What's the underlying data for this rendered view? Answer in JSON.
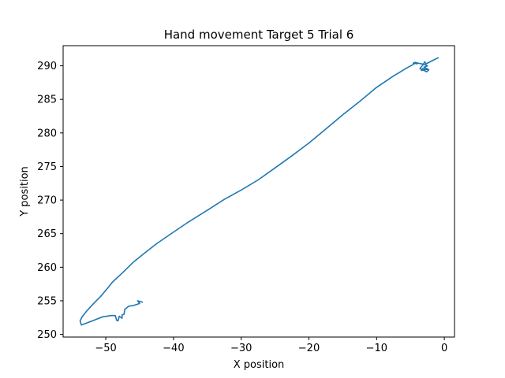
{
  "chart_data": {
    "type": "line",
    "title": "Hand movement Target 5 Trial 6",
    "xlabel": "X position",
    "ylabel": "Y position",
    "xlim": [
      -56.3,
      1.5
    ],
    "ylim": [
      249.6,
      293.0
    ],
    "x_ticks": [
      -50,
      -40,
      -30,
      -20,
      -10,
      0
    ],
    "x_tick_labels": [
      "−50",
      "−40",
      "−30",
      "−20",
      "−10",
      "0"
    ],
    "y_ticks": [
      250,
      255,
      260,
      265,
      270,
      275,
      280,
      285,
      290
    ],
    "y_tick_labels": [
      "250",
      "255",
      "260",
      "265",
      "270",
      "275",
      "280",
      "285",
      "290"
    ],
    "grid": false,
    "line_color": "#1f77b4",
    "series": [
      {
        "x": [
          -44.6,
          -45.3,
          -45.0,
          -45.9,
          -46.6,
          -47.2,
          -47.3,
          -47.6,
          -47.6,
          -48.0,
          -48.2,
          -48.4,
          -48.6,
          -49.2,
          -50.5,
          -52.0,
          -53.3,
          -53.6,
          -53.8,
          -53.5,
          -52.8,
          -51.8,
          -50.8,
          -49.8,
          -49.0,
          -47.5,
          -46.0,
          -44.4,
          -42.5,
          -40.5,
          -38.0,
          -35.0,
          -32.5,
          -30.0,
          -27.5,
          -25.0,
          -22.5,
          -20.0,
          -17.5,
          -15.0,
          -12.5,
          -10.0,
          -7.5,
          -5.5,
          -4.6,
          -4.2,
          -4.0,
          -4.6,
          -4.4,
          -2.9,
          -2.5,
          -3.0,
          -2.4,
          -3.4,
          -3.2,
          -2.3,
          -2.6,
          -3.6,
          -3.1,
          -2.9,
          -2.7,
          -1.5,
          -0.9
        ],
        "y": [
          254.8,
          255.0,
          254.6,
          254.3,
          254.2,
          253.7,
          253.0,
          252.9,
          252.4,
          252.7,
          252.0,
          252.1,
          252.8,
          252.8,
          252.6,
          252.0,
          251.5,
          251.4,
          252.0,
          252.6,
          253.5,
          254.6,
          255.6,
          256.8,
          257.8,
          259.2,
          260.7,
          262.0,
          263.5,
          264.9,
          266.6,
          268.5,
          270.1,
          271.5,
          273.0,
          274.8,
          276.6,
          278.5,
          280.6,
          282.7,
          284.7,
          286.8,
          288.5,
          289.7,
          290.2,
          290.5,
          290.3,
          290.4,
          290.5,
          290.2,
          290.0,
          289.8,
          289.5,
          289.3,
          289.6,
          289.4,
          289.1,
          289.6,
          290.2,
          290.6,
          290.3,
          290.9,
          291.2
        ]
      }
    ]
  }
}
